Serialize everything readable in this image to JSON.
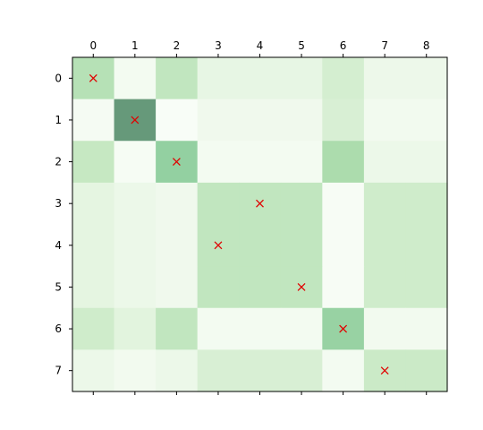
{
  "chart_data": {
    "type": "heatmap",
    "title": "",
    "xlabel": "",
    "ylabel": "",
    "x_ticks": [
      "0",
      "1",
      "2",
      "3",
      "4",
      "5",
      "6",
      "7",
      "8"
    ],
    "y_ticks": [
      "0",
      "1",
      "2",
      "3",
      "4",
      "5",
      "6",
      "7"
    ],
    "x_axis_position": "top",
    "colormap": "Greens",
    "colormap_alpha": 0.6,
    "grid": false,
    "matrix": [
      [
        0.45,
        0.08,
        0.4,
        0.18,
        0.18,
        0.18,
        0.3,
        0.14,
        0.14
      ],
      [
        0.06,
        0.95,
        0.02,
        0.12,
        0.12,
        0.12,
        0.28,
        0.1,
        0.1
      ],
      [
        0.38,
        0.05,
        0.6,
        0.08,
        0.08,
        0.08,
        0.5,
        0.15,
        0.15
      ],
      [
        0.2,
        0.15,
        0.12,
        0.4,
        0.4,
        0.4,
        0.04,
        0.33,
        0.33
      ],
      [
        0.2,
        0.15,
        0.12,
        0.4,
        0.4,
        0.4,
        0.04,
        0.33,
        0.33
      ],
      [
        0.2,
        0.15,
        0.12,
        0.4,
        0.4,
        0.4,
        0.04,
        0.33,
        0.33
      ],
      [
        0.33,
        0.22,
        0.4,
        0.08,
        0.08,
        0.08,
        0.58,
        0.1,
        0.1
      ],
      [
        0.15,
        0.1,
        0.15,
        0.28,
        0.28,
        0.28,
        0.08,
        0.35,
        0.35
      ]
    ],
    "markers": {
      "symbol": "x",
      "color": "#e00000",
      "points": [
        {
          "row": 0,
          "col": 0
        },
        {
          "row": 1,
          "col": 1
        },
        {
          "row": 2,
          "col": 2
        },
        {
          "row": 3,
          "col": 4
        },
        {
          "row": 4,
          "col": 3
        },
        {
          "row": 5,
          "col": 5
        },
        {
          "row": 6,
          "col": 6
        },
        {
          "row": 7,
          "col": 7
        }
      ]
    }
  }
}
